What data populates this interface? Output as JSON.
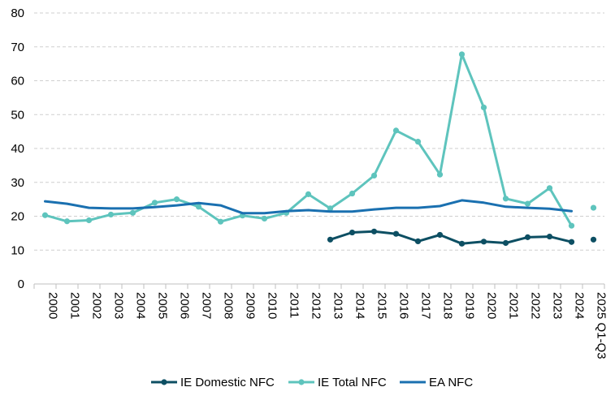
{
  "chart_data": {
    "type": "line",
    "title": "",
    "xlabel": "",
    "ylabel": "",
    "ylim": [
      0,
      80
    ],
    "yticks": [
      0,
      10,
      20,
      30,
      40,
      50,
      60,
      70,
      80
    ],
    "grid": "horizontal-dashed",
    "legend_position": "bottom",
    "categories": [
      "2000",
      "2001",
      "2002",
      "2003",
      "2004",
      "2005",
      "2006",
      "2007",
      "2008",
      "2009",
      "2010",
      "2011",
      "2012",
      "2013",
      "2014",
      "2015",
      "2016",
      "2017",
      "2018",
      "2019",
      "2020",
      "2021",
      "2022",
      "2023",
      "2024",
      "2025 Q1-Q3"
    ],
    "series": [
      {
        "name": "IE Domestic NFC",
        "color": "#0d4f63",
        "markers": true,
        "values": [
          null,
          null,
          null,
          null,
          null,
          null,
          null,
          null,
          null,
          null,
          null,
          null,
          null,
          13.1,
          15.2,
          15.5,
          14.8,
          12.6,
          14.5,
          11.9,
          12.5,
          12.1,
          13.8,
          14.0,
          12.4,
          13.1
        ]
      },
      {
        "name": "IE Total NFC",
        "color": "#5ec4bd",
        "markers": true,
        "values": [
          20.3,
          18.5,
          18.8,
          20.5,
          21.0,
          24.0,
          25.0,
          22.8,
          18.4,
          20.2,
          19.3,
          21.0,
          26.5,
          22.3,
          26.7,
          32.0,
          45.3,
          42.0,
          32.3,
          67.8,
          52.1,
          25.2,
          23.7,
          28.3,
          17.2,
          22.5
        ]
      },
      {
        "name": "EA NFC",
        "color": "#1a70b0",
        "markers": false,
        "values": [
          24.4,
          23.7,
          22.5,
          22.3,
          22.3,
          22.7,
          23.2,
          23.9,
          23.2,
          20.9,
          20.9,
          21.5,
          21.8,
          21.4,
          21.4,
          22.0,
          22.5,
          22.5,
          23.0,
          24.7,
          24.0,
          22.8,
          22.5,
          22.2,
          21.5,
          null
        ]
      }
    ]
  }
}
